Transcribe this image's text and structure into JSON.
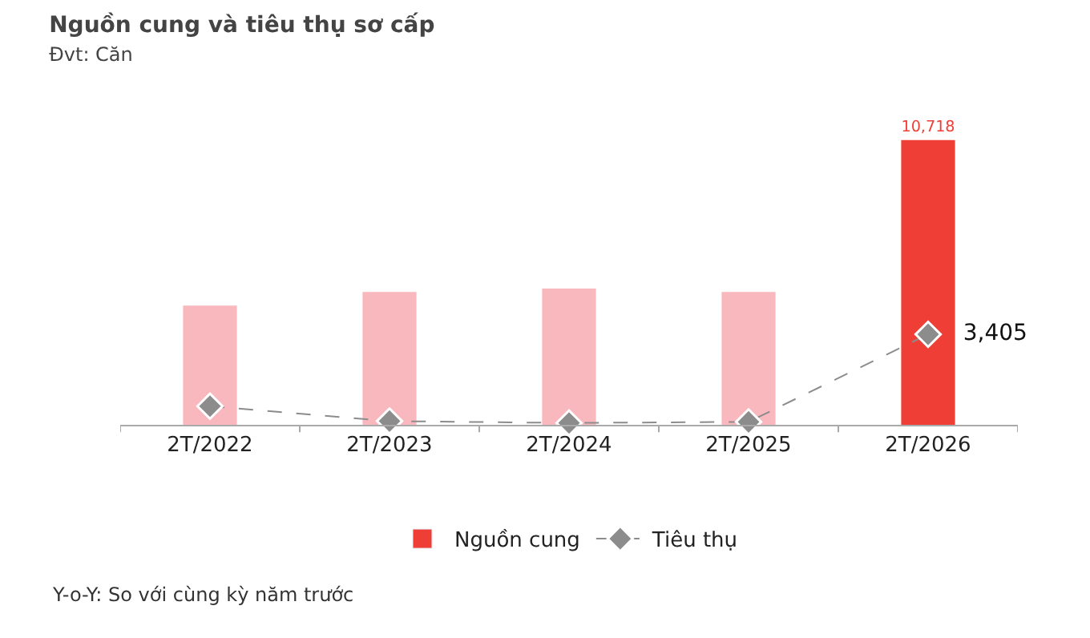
{
  "chart_data": {
    "type": "bar",
    "title": "Nguồn cung và tiêu thụ sơ cấp",
    "subtitle": "Đvt: Căn",
    "categories": [
      "2T/2022",
      "2T/2023",
      "2T/2024",
      "2T/2025",
      "2T/2026"
    ],
    "series": [
      {
        "name": "Nguồn cung",
        "color": "#ef3e36",
        "colors": [
          "#f9b8bd",
          "#f9b8bd",
          "#f9b8bd",
          "#f9b8bd",
          "#ef3e36"
        ],
        "values": [
          4490,
          5000,
          5130,
          5000,
          10718
        ],
        "value_labels": [
          null,
          null,
          null,
          null,
          "10,718"
        ]
      },
      {
        "name": "Tiêu thụ",
        "type": "line",
        "color": "#8c8c8c",
        "marker": "diamond",
        "line_style": "dashed",
        "values": [
          700,
          140,
          70,
          110,
          3405
        ],
        "value_labels": [
          null,
          null,
          null,
          null,
          "3,405"
        ]
      }
    ],
    "legend": "bottom",
    "annotations": [
      "Y-o-Y: So với cùng kỳ năm trước"
    ]
  }
}
